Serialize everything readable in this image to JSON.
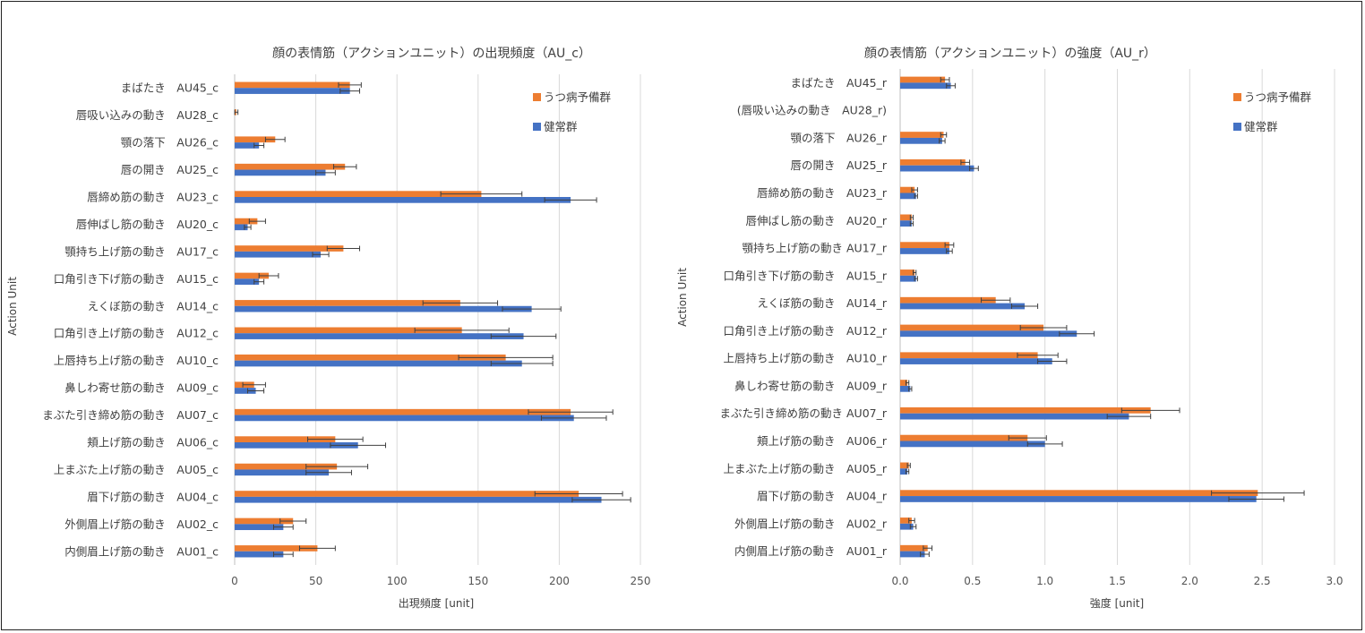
{
  "colors": {
    "depression": "#ED7D31",
    "healthy": "#4472C4"
  },
  "chart_data": [
    {
      "type": "bar",
      "orientation": "horizontal",
      "title": "顔の表情筋（アクションユニット）の出現頻度（AU_c）",
      "xlabel": "出現頻度 [unit]",
      "ylabel": "Action Unit",
      "xlim": [
        0,
        250
      ],
      "xticks": [
        "0",
        "50",
        "100",
        "150",
        "200",
        "250"
      ],
      "grid": true,
      "legend_position": "top-right",
      "categories": [
        "まばたき　AU45_c",
        "唇吸い込みの動き　AU28_c",
        "顎の落下　AU26_c",
        "唇の開き　AU25_c",
        "唇締め筋の動き　AU23_c",
        "唇伸ばし筋の動き　AU20_c",
        "顎持ち上げ筋の動き　AU17_c",
        "口角引き下げ筋の動き　AU15_c",
        "えくぼ筋の動き　AU14_c",
        "口角引き上げ筋の動き　AU12_c",
        "上唇持ち上げ筋の動き　AU10_c",
        "鼻しわ寄せ筋の動き　AU09_c",
        "まぶた引き締め筋の動き　AU07_c",
        "頬上げ筋の動き　AU06_c",
        "上まぶた上げ筋の動き　AU05_c",
        "眉下げ筋の動き　AU04_c",
        "外側眉上げ筋の動き　AU02_c",
        "内側眉上げ筋の動き　AU01_c"
      ],
      "series": [
        {
          "name": "うつ病予備群",
          "values": [
            71,
            1,
            25,
            68,
            152,
            14,
            67,
            21,
            139,
            140,
            167,
            12,
            207,
            62,
            63,
            212,
            36,
            51
          ],
          "errors": [
            7,
            1,
            6,
            7,
            25,
            5,
            10,
            6,
            23,
            29,
            29,
            7,
            26,
            17,
            19,
            27,
            8,
            11
          ]
        },
        {
          "name": "健常群",
          "values": [
            71,
            0,
            15,
            56,
            207,
            8,
            53,
            15,
            183,
            178,
            177,
            13,
            209,
            76,
            58,
            226,
            30,
            30
          ],
          "errors": [
            6,
            0,
            3,
            6,
            16,
            2,
            5,
            3,
            18,
            20,
            19,
            5,
            20,
            17,
            14,
            18,
            6,
            6
          ]
        }
      ]
    },
    {
      "type": "bar",
      "orientation": "horizontal",
      "title": "顔の表情筋（アクションユニット）の強度（AU_r）",
      "xlabel": "強度 [unit]",
      "ylabel": "Action Unit",
      "xlim": [
        0,
        3.0
      ],
      "xticks": [
        "0.0",
        "0.5",
        "1.0",
        "1.5",
        "2.0",
        "2.5",
        "3.0"
      ],
      "grid": true,
      "legend_position": "top-right",
      "categories": [
        "まばたき　AU45_r",
        "(唇吸い込みの動き　AU28_r)",
        "顎の落下　AU26_r",
        "唇の開き　AU25_r",
        "唇締め筋の動き　AU23_r",
        "唇伸ばし筋の動き　AU20_r",
        "顎持ち上げ筋の動き AU17_r",
        "口角引き下げ筋の動き　AU15_r",
        "えくぼ筋の動き　AU14_r",
        "口角引き上げ筋の動き　AU12_r",
        "上唇持ち上げ筋の動き　AU10_r",
        "鼻しわ寄せ筋の動き　AU09_r",
        "まぶた引き締め筋の動き AU07_r",
        "頬上げ筋の動き　AU06_r",
        "上まぶた上げ筋の動き　AU05_r",
        "眉下げ筋の動き　AU04_r",
        "外側眉上げ筋の動き　AU02_r",
        "内側眉上げ筋の動き　AU01_r"
      ],
      "series": [
        {
          "name": "うつ病予備群",
          "values": [
            0.31,
            0,
            0.3,
            0.45,
            0.1,
            0.08,
            0.34,
            0.1,
            0.66,
            0.99,
            0.95,
            0.05,
            1.73,
            0.88,
            0.06,
            2.47,
            0.08,
            0.19
          ],
          "errors": [
            0.03,
            0,
            0.02,
            0.03,
            0.02,
            0.01,
            0.03,
            0.01,
            0.1,
            0.16,
            0.14,
            0.01,
            0.2,
            0.13,
            0.01,
            0.32,
            0.02,
            0.03
          ]
        },
        {
          "name": "健常群",
          "values": [
            0.35,
            0,
            0.29,
            0.51,
            0.11,
            0.08,
            0.34,
            0.11,
            0.86,
            1.22,
            1.05,
            0.07,
            1.58,
            1.0,
            0.05,
            2.46,
            0.09,
            0.17
          ],
          "errors": [
            0.03,
            0,
            0.02,
            0.03,
            0.01,
            0.01,
            0.02,
            0.01,
            0.09,
            0.12,
            0.1,
            0.01,
            0.15,
            0.12,
            0.01,
            0.19,
            0.02,
            0.03
          ]
        }
      ]
    }
  ]
}
